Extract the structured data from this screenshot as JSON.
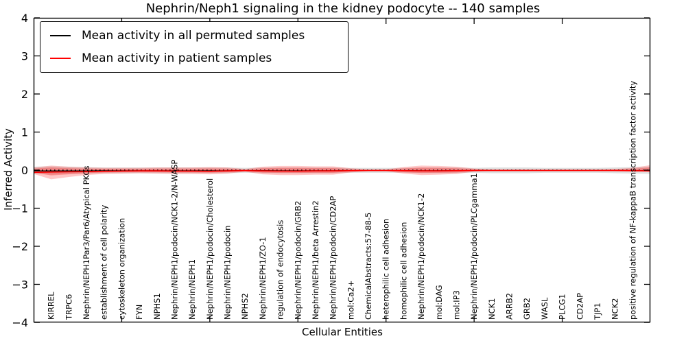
{
  "title": "Nephrin/Neph1 signaling in the kidney podocyte -- 140 samples",
  "axes": {
    "x_label": "Cellular Entities",
    "y_label": "Inferred Activity"
  },
  "legend": [
    {
      "label": "Mean activity in all permuted samples",
      "color": "#000000"
    },
    {
      "label": "Mean activity in patient samples",
      "color": "#ff0000"
    }
  ],
  "chart_data": {
    "type": "line",
    "title": "Nephrin/Neph1 signaling in the kidney podocyte -- 140 samples",
    "xlabel": "Cellular Entities",
    "ylabel": "Inferred Activity",
    "ylim": [
      -4,
      4
    ],
    "yticks": [
      -4,
      -3,
      -2,
      -1,
      0,
      1,
      2,
      3,
      4
    ],
    "xlim": [
      0,
      35
    ],
    "xticks_major": [
      5,
      10,
      15,
      20,
      25,
      30
    ],
    "grid": false,
    "legend_position": "upper left",
    "categories": [
      "KIRREL",
      "TRPC6",
      "Nephrin/NEPH1Par3/Par6/Atypical PKCs",
      "establishment of cell polarity",
      "cytoskeleton organization",
      "FYN",
      "NPHS1",
      "Nephrin/NEPH1/podocin/NCK1-2/N-WASP",
      "Nephrin/NEPH1",
      "Nephrin/NEPH1/podocin/Cholesterol",
      "Nephrin/NEPH1/podocin",
      "NPHS2",
      "Nephrin/NEPH1/ZO-1",
      "regulation of endocytosis",
      "Nephrin/NEPH1/podocin/GRB2",
      "Nephrin/NEPH1/beta Arrestin2",
      "Nephrin/NEPH1/podocin/CD2AP",
      "mol:Ca2+",
      "ChemicalAbstracts:57-88-5",
      "heterophilic cell adhesion",
      "homophilic cell adhesion",
      "Nephrin/NEPH1/podocin/NCK1-2",
      "mol:DAG",
      "mol:IP3",
      "Nephrin/NEPH1/podocin/PLCgamma1",
      "NCK1",
      "ARRB2",
      "GRB2",
      "WASL",
      "PLCG1",
      "CD2AP",
      "TJP1",
      "NCK2",
      "positive regulation of NF-kappaB transcription factor activity"
    ],
    "category_x_start": 1,
    "bands": [
      {
        "name": "permuted-samples-range",
        "color": "#000000",
        "opacity": 0.12,
        "upper": [
          0.09,
          0.1,
          0.09,
          0.08,
          0.07,
          0.07,
          0.07,
          0.07,
          0.07,
          0.07,
          0.07,
          0.07,
          0.06,
          0.07,
          0.07,
          0.07,
          0.07,
          0.07,
          0.06,
          0.06,
          0.06,
          0.06,
          0.07,
          0.07,
          0.07,
          0.06,
          0.07,
          0.07,
          0.07,
          0.06,
          0.06,
          0.06,
          0.06,
          0.07,
          0.08,
          0.09
        ],
        "lower": [
          -0.1,
          -0.12,
          -0.1,
          -0.09,
          -0.08,
          -0.08,
          -0.08,
          -0.08,
          -0.08,
          -0.08,
          -0.08,
          -0.08,
          -0.07,
          -0.08,
          -0.08,
          -0.08,
          -0.08,
          -0.08,
          -0.07,
          -0.07,
          -0.07,
          -0.07,
          -0.08,
          -0.08,
          -0.08,
          -0.07,
          -0.08,
          -0.08,
          -0.08,
          -0.07,
          -0.07,
          -0.07,
          -0.07,
          -0.08,
          -0.09,
          -0.1
        ]
      },
      {
        "name": "patient-samples-range-outer",
        "color": "#ff0000",
        "opacity": 0.22,
        "upper": [
          0.07,
          0.12,
          0.09,
          0.07,
          0.06,
          0.06,
          0.06,
          0.07,
          0.07,
          0.07,
          0.08,
          0.07,
          0.03,
          0.09,
          0.11,
          0.11,
          0.1,
          0.1,
          0.05,
          0.02,
          0.02,
          0.08,
          0.12,
          0.11,
          0.09,
          0.04,
          0.02,
          0.02,
          0.02,
          0.02,
          0.02,
          0.02,
          0.02,
          0.03,
          0.06,
          0.13
        ],
        "lower": [
          -0.1,
          -0.24,
          -0.18,
          -0.13,
          -0.1,
          -0.09,
          -0.08,
          -0.09,
          -0.1,
          -0.1,
          -0.11,
          -0.09,
          -0.04,
          -0.11,
          -0.13,
          -0.13,
          -0.12,
          -0.12,
          -0.06,
          -0.03,
          -0.03,
          -0.09,
          -0.13,
          -0.12,
          -0.1,
          -0.04,
          -0.02,
          -0.02,
          -0.02,
          -0.02,
          -0.02,
          -0.02,
          -0.02,
          -0.03,
          -0.04,
          -0.05
        ]
      },
      {
        "name": "patient-samples-range-inner",
        "color": "#ff0000",
        "opacity": 0.25,
        "upper": [
          0.04,
          0.07,
          0.05,
          0.04,
          0.035,
          0.035,
          0.035,
          0.04,
          0.04,
          0.04,
          0.045,
          0.04,
          0.02,
          0.05,
          0.06,
          0.06,
          0.055,
          0.055,
          0.03,
          0.012,
          0.012,
          0.045,
          0.065,
          0.06,
          0.05,
          0.025,
          0.012,
          0.012,
          0.012,
          0.012,
          0.012,
          0.012,
          0.012,
          0.02,
          0.035,
          0.07
        ],
        "lower": [
          -0.06,
          -0.14,
          -0.11,
          -0.08,
          -0.06,
          -0.055,
          -0.05,
          -0.055,
          -0.06,
          -0.06,
          -0.065,
          -0.055,
          -0.025,
          -0.065,
          -0.075,
          -0.075,
          -0.07,
          -0.07,
          -0.035,
          -0.018,
          -0.018,
          -0.055,
          -0.075,
          -0.07,
          -0.06,
          -0.025,
          -0.012,
          -0.012,
          -0.012,
          -0.012,
          -0.012,
          -0.012,
          -0.012,
          -0.018,
          -0.025,
          -0.03
        ]
      }
    ],
    "series": [
      {
        "name": "zero-reference",
        "color": "#000000",
        "style": "dotted",
        "width": 1.6,
        "y": [
          0,
          0,
          0,
          0,
          0,
          0,
          0,
          0,
          0,
          0,
          0,
          0,
          0,
          0,
          0,
          0,
          0,
          0,
          0,
          0,
          0,
          0,
          0,
          0,
          0,
          0,
          0,
          0,
          0,
          0,
          0,
          0,
          0,
          0,
          0,
          0
        ]
      },
      {
        "name": "mean-activity-permuted",
        "color": "#000000",
        "style": "solid",
        "width": 1.2,
        "y": [
          -0.02,
          -0.02,
          -0.02,
          -0.02,
          -0.015,
          -0.015,
          -0.015,
          -0.015,
          -0.015,
          -0.015,
          -0.015,
          -0.015,
          -0.01,
          -0.01,
          -0.015,
          -0.015,
          -0.015,
          -0.015,
          -0.01,
          -0.01,
          -0.01,
          -0.01,
          -0.015,
          -0.015,
          -0.01,
          -0.01,
          -0.01,
          -0.01,
          -0.01,
          -0.01,
          -0.01,
          -0.01,
          -0.01,
          -0.01,
          -0.01,
          -0.01
        ]
      },
      {
        "name": "mean-activity-patient",
        "color": "#ff0000",
        "style": "solid",
        "width": 1.6,
        "y": [
          -0.06,
          -0.05,
          -0.045,
          -0.04,
          -0.03,
          -0.025,
          -0.02,
          -0.02,
          -0.025,
          -0.025,
          -0.03,
          -0.02,
          -0.015,
          -0.02,
          -0.025,
          -0.025,
          -0.02,
          -0.02,
          -0.015,
          -0.01,
          -0.01,
          -0.015,
          -0.02,
          -0.02,
          -0.015,
          -0.01,
          -0.01,
          -0.01,
          -0.01,
          -0.01,
          -0.01,
          -0.01,
          -0.01,
          -0.01,
          -0.015,
          -0.02
        ]
      }
    ]
  }
}
